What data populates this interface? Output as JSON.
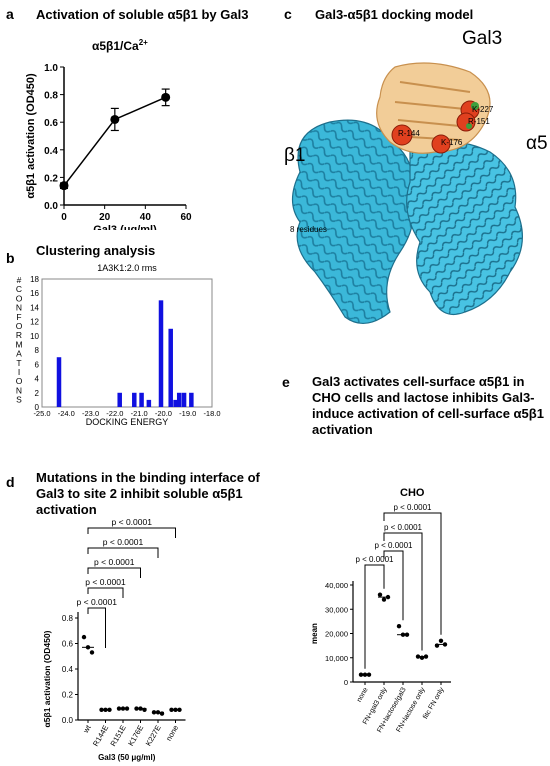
{
  "panel_a": {
    "letter": "a",
    "title": "Activation of soluble α5β1 by Gal3",
    "subtitle": "α5β1/Ca",
    "subtitle_sup": "2+"
  },
  "panel_b": {
    "letter": "b",
    "title": "Clustering analysis",
    "inner_title": "1A3K1:2.0 rms"
  },
  "panel_c": {
    "letter": "c",
    "title": "Gal3-α5β1 docking model",
    "labels": {
      "gal3": "Gal3",
      "b1": "β1",
      "a5": "α5",
      "gap": "8 residues",
      "r144": "R-144",
      "r151": "R-151",
      "k176": "K-176",
      "k227": "K-227"
    }
  },
  "panel_d": {
    "letter": "d",
    "title_lines": [
      "Mutations in the binding interface of",
      "Gal3  to site 2 inhibit soluble α5β1",
      "activation"
    ]
  },
  "panel_e": {
    "letter": "e",
    "title_lines": [
      "Gal3 activates cell-surface α5β1 in",
      "CHO cells and lactose inhibits Gal3-",
      "induce activation of cell-surface α5β1",
      "activation"
    ],
    "inner_title": "CHO"
  },
  "chart_data": [
    {
      "type": "line",
      "panel": "a",
      "title": "α5β1/Ca2+",
      "xlabel": "Gal3 (μg/ml)",
      "ylabel": "α5β1 activation (OD450)",
      "xlim": [
        0,
        60
      ],
      "ylim": [
        0.0,
        1.0
      ],
      "xticks": [
        "0",
        "20",
        "40",
        "60"
      ],
      "yticks": [
        "0.0",
        "0.2",
        "0.4",
        "0.6",
        "0.8",
        "1.0"
      ],
      "x": [
        0,
        25,
        50
      ],
      "y": [
        0.14,
        0.62,
        0.78
      ],
      "error": [
        0.02,
        0.08,
        0.06
      ]
    },
    {
      "type": "bar",
      "panel": "b",
      "title": "1A3K1:2.0 rms",
      "xlabel": "DOCKING ENERGY",
      "ylabel": "# CONFORMATIONS",
      "ylabel_chars": [
        "#",
        "C",
        "O",
        "N",
        "F",
        "O",
        "R",
        "M",
        "A",
        "T",
        "I",
        "O",
        "N",
        "S"
      ],
      "xlim": [
        -25.0,
        -18.0
      ],
      "ylim": [
        0,
        18
      ],
      "xticks": [
        "-25.0",
        "-24.0",
        "-23.0",
        "-22.0",
        "-21.0",
        "-20.0",
        "-19.0",
        "-18.0"
      ],
      "yticks": [
        "0",
        "2",
        "4",
        "6",
        "8",
        "10",
        "12",
        "14",
        "16",
        "18"
      ],
      "x": [
        -24.3,
        -21.8,
        -21.2,
        -20.9,
        -20.6,
        -20.1,
        -19.7,
        -19.5,
        -19.35,
        -19.15,
        -18.85
      ],
      "values": [
        7,
        2,
        2,
        2,
        1,
        15,
        11,
        1,
        2,
        2,
        2
      ],
      "color": "#1010e0"
    },
    {
      "type": "scatter",
      "panel": "d",
      "xlabel": "Gal3 (50 μg/ml)",
      "ylabel": "α5β1 activation (OD450)",
      "categories": [
        "wt",
        "R144E",
        "R151E",
        "K176E",
        "K227E",
        "none"
      ],
      "ylim": [
        0.0,
        0.8
      ],
      "yticks": [
        "0.0",
        "0.2",
        "0.4",
        "0.6",
        "0.8"
      ],
      "points": [
        [
          0.65,
          0.57,
          0.53
        ],
        [
          0.08,
          0.08,
          0.08
        ],
        [
          0.09,
          0.09,
          0.09
        ],
        [
          0.09,
          0.09,
          0.08
        ],
        [
          0.06,
          0.06,
          0.05
        ],
        [
          0.08,
          0.08,
          0.08
        ]
      ],
      "medians": [
        0.57,
        0.08,
        0.09,
        0.09,
        0.06,
        0.08
      ],
      "brackets": [
        {
          "from": "wt",
          "to": "R144E",
          "label": "p < 0.0001"
        },
        {
          "from": "wt",
          "to": "R151E",
          "label": "p < 0.0001"
        },
        {
          "from": "wt",
          "to": "K176E",
          "label": "p < 0.0001"
        },
        {
          "from": "wt",
          "to": "K227E",
          "label": "p < 0.0001"
        },
        {
          "from": "wt",
          "to": "none",
          "label": "p < 0.0001"
        }
      ]
    },
    {
      "type": "scatter",
      "panel": "e",
      "title": "CHO",
      "ylabel": "mean",
      "categories": [
        "none",
        "FN+gal3 only",
        "FN+lactose/gal3",
        "FN+lactose only",
        "fitc FN only"
      ],
      "ylim": [
        0,
        40000
      ],
      "yticks": [
        "0",
        "10,000",
        "20,000",
        "30,000",
        "40,000"
      ],
      "points": [
        [
          3000,
          3000,
          3000
        ],
        [
          36000,
          34000,
          35000
        ],
        [
          23000,
          19500,
          19500
        ],
        [
          10500,
          10000,
          10500
        ],
        [
          15000,
          17000,
          15500
        ]
      ],
      "medians": [
        3000,
        35000,
        19500,
        10500,
        15500
      ],
      "brackets": [
        {
          "from": "none",
          "to": "FN+gal3 only",
          "label": "p < 0.0001"
        },
        {
          "from": "FN+gal3 only",
          "to": "FN+lactose/gal3",
          "label": "p < 0.0001"
        },
        {
          "from": "FN+gal3 only",
          "to": "FN+lactose only",
          "label": "p < 0.0001"
        },
        {
          "from": "FN+gal3 only",
          "to": "fitc FN only",
          "label": "p < 0.0001"
        }
      ]
    }
  ]
}
